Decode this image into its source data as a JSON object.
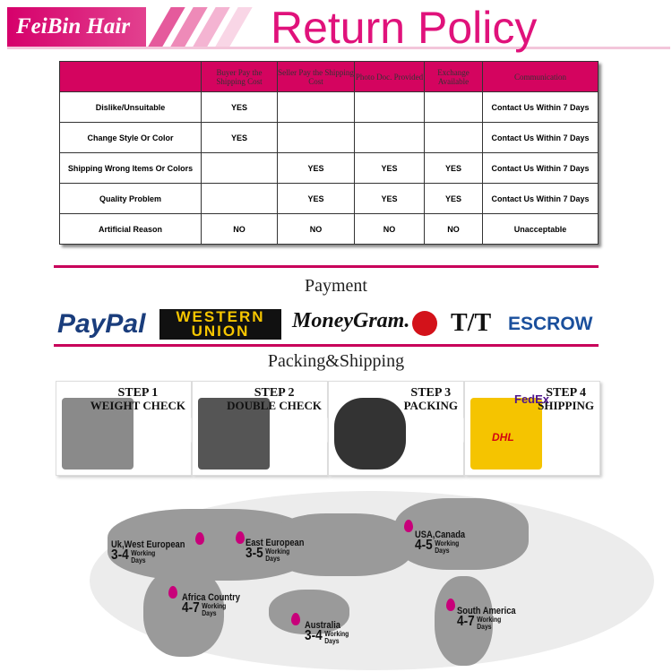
{
  "header": {
    "brand": "FeiBin Hair",
    "title": "Return Policy",
    "accent": "#d4045f"
  },
  "table": {
    "columns": [
      "",
      "Buyer Pay the Shipping Cost",
      "Seller Pay the Shipping Cost",
      "Photo Doc. Provided",
      "Exchange Available",
      "Communication"
    ],
    "rows": [
      [
        "Dislike/Unsuitable",
        "YES",
        "",
        "",
        "",
        "Contact Us Within 7 Days"
      ],
      [
        "Change Style Or Color",
        "YES",
        "",
        "",
        "",
        "Contact Us Within 7 Days"
      ],
      [
        "Shipping Wrong Items Or Colors",
        "",
        "YES",
        "YES",
        "YES",
        "Contact Us Within 7 Days"
      ],
      [
        "Quality Problem",
        "",
        "YES",
        "YES",
        "YES",
        "Contact Us Within 7 Days"
      ],
      [
        "Artificial Reason",
        "NO",
        "NO",
        "NO",
        "NO",
        "Unacceptable"
      ]
    ]
  },
  "payment": {
    "title": "Payment",
    "logos": [
      "PayPal",
      "WESTERN UNION",
      "MoneyGram.",
      "T/T",
      "ESCROW"
    ]
  },
  "shipping": {
    "title": "Packing&Shipping",
    "steps": [
      {
        "step": "STEP 1",
        "label": "WEIGHT CHECK"
      },
      {
        "step": "STEP 2",
        "label": "DOUBLE CHECK"
      },
      {
        "step": "STEP 3",
        "label": "PACKING"
      },
      {
        "step": "STEP 4",
        "label": "SHIPPING"
      }
    ],
    "carriers": [
      "FedEx",
      "DHL"
    ]
  },
  "map": {
    "working": "Working",
    "days": "Days",
    "locations": [
      {
        "name": "Uk,West European",
        "range": "3-4"
      },
      {
        "name": "East European",
        "range": "3-5"
      },
      {
        "name": "USA,Canada",
        "range": "4-5"
      },
      {
        "name": "Africa Country",
        "range": "4-7"
      },
      {
        "name": "Australia",
        "range": "3-4"
      },
      {
        "name": "South America",
        "range": "4-7"
      }
    ]
  }
}
